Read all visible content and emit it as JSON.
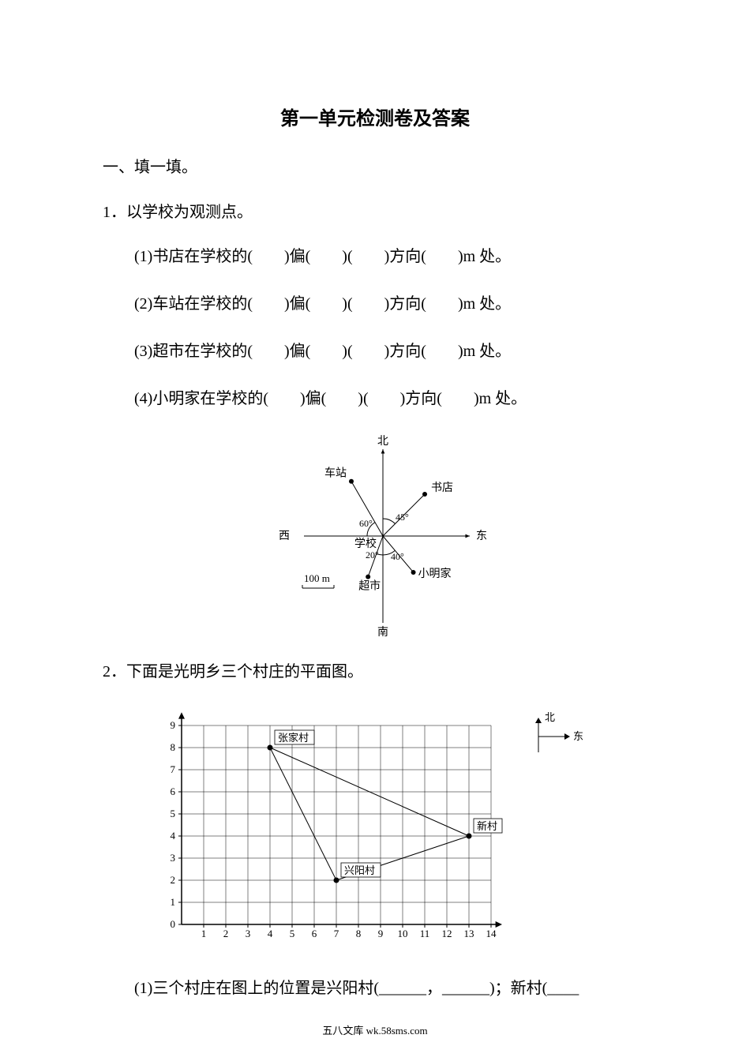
{
  "title": "第一单元检测卷及答案",
  "section1": "一、填一填。",
  "q1": {
    "stem": "1．以学校为观测点。",
    "s1": "(1)书店在学校的(　　)偏(　　)(　　)方向(　　)m 处。",
    "s2": "(2)车站在学校的(　　)偏(　　)(　　)方向(　　)m 处。",
    "s3": "(3)超市在学校的(　　)偏(　　)(　　)方向(　　)m 处。",
    "s4": "(4)小明家在学校的(　　)偏(　　)(　　)方向(　　)m 处。"
  },
  "compass_diagram": {
    "labels": {
      "north": "北",
      "south": "南",
      "east": "东",
      "west": "西",
      "school": "学校",
      "bookstore": "书店",
      "station": "车站",
      "supermarket": "超市",
      "xiaoming": "小明家",
      "scale": "100 m"
    },
    "angles": {
      "a60": "60°",
      "a45": "45°",
      "a20": "20°",
      "a40": "40°"
    },
    "colors": {
      "line": "#000000",
      "text": "#000000",
      "bg": "#ffffff"
    }
  },
  "q2": {
    "stem": "2．下面是光明乡三个村庄的平面图。",
    "s1_prefix": "(1)三个村庄在图上的位置是兴阳村(______，______)；新村(____"
  },
  "grid_chart": {
    "type": "scatter",
    "x_ticks": [
      1,
      2,
      3,
      4,
      5,
      6,
      7,
      8,
      9,
      10,
      11,
      12,
      13,
      14
    ],
    "y_ticks": [
      0,
      1,
      2,
      3,
      4,
      5,
      6,
      7,
      8,
      9
    ],
    "xlim": [
      0,
      14.5
    ],
    "ylim": [
      0,
      9.5
    ],
    "points": {
      "zhangjia": {
        "label": "张家村",
        "x": 4,
        "y": 8
      },
      "xingyang": {
        "label": "兴阳村",
        "x": 7,
        "y": 2
      },
      "xincun": {
        "label": "新村",
        "x": 13,
        "y": 4
      }
    },
    "edges": [
      [
        "zhangjia",
        "xingyang"
      ],
      [
        "zhangjia",
        "xincun"
      ],
      [
        "xingyang",
        "xincun"
      ]
    ],
    "compass": {
      "north": "北",
      "east": "东"
    },
    "colors": {
      "axis": "#000000",
      "grid": "#000000",
      "point": "#000000",
      "edge": "#000000",
      "box_fill": "#ffffff",
      "box_stroke": "#000000",
      "text": "#000000"
    },
    "font_size": 13
  },
  "footer": "五八文库 wk.58sms.com"
}
